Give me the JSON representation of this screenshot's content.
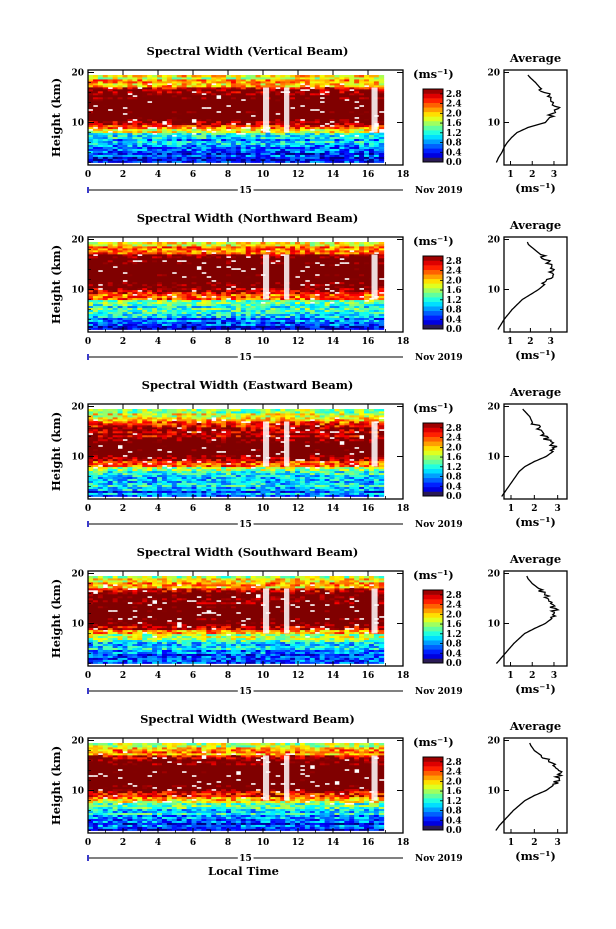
{
  "figure": {
    "x_unit_label": "(ms⁻¹)",
    "height_label": "Height (km)",
    "local_time_label": "Local Time",
    "date_day": "15",
    "date_month_year": "Nov 2019",
    "average_title": "Average"
  },
  "chart_data": [
    {
      "type": "heatmap",
      "title": "Spectral Width (Vertical Beam)",
      "xlabel": "",
      "ylabel": "Height (km)",
      "xlim": [
        0,
        18
      ],
      "xticks": [
        0,
        2,
        4,
        6,
        8,
        10,
        12,
        14,
        16,
        18
      ],
      "xtick_labels": [
        "0",
        "2",
        "4",
        "6",
        "8",
        "10",
        "12",
        "14",
        "16",
        "18"
      ],
      "ylim": [
        1.5,
        20.5
      ],
      "yticks": [
        10,
        20
      ],
      "data_x_range": [
        0,
        16.9
      ],
      "data_y_range": [
        2,
        19.5
      ],
      "colorbar": {
        "unit": "(ms⁻¹)",
        "range": [
          0.0,
          3.0
        ],
        "ticks": [
          0.0,
          0.4,
          0.8,
          1.2,
          1.6,
          2.0,
          2.4,
          2.8
        ]
      },
      "height_profile": [
        [
          2,
          0.35
        ],
        [
          3,
          0.45
        ],
        [
          4,
          0.6
        ],
        [
          5,
          0.7
        ],
        [
          6,
          0.85
        ],
        [
          7,
          1.05
        ],
        [
          8,
          1.3
        ],
        [
          9,
          1.8
        ],
        [
          10,
          2.6
        ],
        [
          11,
          2.8
        ],
        [
          12,
          3.0
        ],
        [
          13,
          3.1
        ],
        [
          14,
          2.9
        ],
        [
          15,
          2.8
        ],
        [
          16,
          2.6
        ],
        [
          17,
          2.35
        ],
        [
          18,
          2.15
        ],
        [
          19,
          1.9
        ],
        [
          19.5,
          1.8
        ]
      ]
    },
    {
      "type": "heatmap",
      "title": "Spectral Width (Northward Beam)",
      "xlabel": "",
      "ylabel": "Height (km)",
      "xlim": [
        0,
        18
      ],
      "xticks": [
        0,
        2,
        4,
        6,
        8,
        10,
        12,
        14,
        16,
        18
      ],
      "xtick_labels": [
        "0",
        "2",
        "4",
        "6",
        "8",
        "10",
        "12",
        "14",
        "16",
        "18"
      ],
      "ylim": [
        1.5,
        20.5
      ],
      "yticks": [
        10,
        20
      ],
      "data_x_range": [
        0,
        16.9
      ],
      "data_y_range": [
        2,
        19.5
      ],
      "colorbar": {
        "unit": "(ms⁻¹)",
        "range": [
          0.0,
          3.0
        ],
        "ticks": [
          0.0,
          0.4,
          0.8,
          1.2,
          1.6,
          2.0,
          2.4,
          2.8
        ]
      },
      "height_profile": [
        [
          2,
          0.4
        ],
        [
          3,
          0.55
        ],
        [
          4,
          0.7
        ],
        [
          5,
          0.9
        ],
        [
          6,
          1.1
        ],
        [
          7,
          1.35
        ],
        [
          8,
          1.6
        ],
        [
          9,
          2.0
        ],
        [
          10,
          2.4
        ],
        [
          11,
          2.7
        ],
        [
          12,
          2.9
        ],
        [
          13,
          3.0
        ],
        [
          14,
          3.1
        ],
        [
          15,
          3.0
        ],
        [
          16,
          2.8
        ],
        [
          17,
          2.5
        ],
        [
          18,
          2.2
        ],
        [
          19,
          1.9
        ],
        [
          19.5,
          1.85
        ]
      ]
    },
    {
      "type": "heatmap",
      "title": "Spectral Width (Eastward Beam)",
      "xlabel": "",
      "ylabel": "Height (km)",
      "xlim": [
        0,
        18
      ],
      "xticks": [
        0,
        2,
        4,
        6,
        8,
        10,
        12,
        14,
        16,
        18
      ],
      "xtick_labels": [
        "0",
        "2",
        "4",
        "6",
        "8",
        "10",
        "12",
        "14",
        "16",
        "18"
      ],
      "ylim": [
        1.5,
        20.5
      ],
      "yticks": [
        10,
        20
      ],
      "data_x_range": [
        0,
        16.9
      ],
      "data_y_range": [
        2,
        19.5
      ],
      "colorbar": {
        "unit": "(ms⁻¹)",
        "range": [
          0.0,
          3.0
        ],
        "ticks": [
          0.0,
          0.4,
          0.8,
          1.2,
          1.6,
          2.0,
          2.4,
          2.8
        ]
      },
      "height_profile": [
        [
          2,
          0.6
        ],
        [
          3,
          0.75
        ],
        [
          4,
          0.9
        ],
        [
          5,
          1.05
        ],
        [
          6,
          1.2
        ],
        [
          7,
          1.35
        ],
        [
          8,
          1.6
        ],
        [
          9,
          2.0
        ],
        [
          10,
          2.5
        ],
        [
          11,
          2.8
        ],
        [
          12,
          2.9
        ],
        [
          13,
          2.6
        ],
        [
          14,
          2.5
        ],
        [
          15,
          2.3
        ],
        [
          16,
          2.1
        ],
        [
          17,
          1.9
        ],
        [
          18,
          1.8
        ],
        [
          19,
          1.6
        ],
        [
          19.5,
          1.5
        ]
      ]
    },
    {
      "type": "heatmap",
      "title": "Spectral Width (Southward Beam)",
      "xlabel": "",
      "ylabel": "Height (km)",
      "xlim": [
        0,
        18
      ],
      "xticks": [
        0,
        2,
        4,
        6,
        8,
        10,
        12,
        14,
        16,
        18
      ],
      "xtick_labels": [
        "0",
        "2",
        "4",
        "6",
        "8",
        "10",
        "12",
        "14",
        "16",
        "18"
      ],
      "ylim": [
        1.5,
        20.5
      ],
      "yticks": [
        10,
        20
      ],
      "data_x_range": [
        0,
        16.9
      ],
      "data_y_range": [
        2,
        19.5
      ],
      "colorbar": {
        "unit": "(ms⁻¹)",
        "range": [
          0.0,
          3.0
        ],
        "ticks": [
          0.0,
          0.4,
          0.8,
          1.2,
          1.6,
          2.0,
          2.4,
          2.8
        ]
      },
      "height_profile": [
        [
          2,
          0.35
        ],
        [
          3,
          0.55
        ],
        [
          4,
          0.75
        ],
        [
          5,
          0.95
        ],
        [
          6,
          1.15
        ],
        [
          7,
          1.4
        ],
        [
          8,
          1.65
        ],
        [
          9,
          2.1
        ],
        [
          10,
          2.6
        ],
        [
          11,
          2.9
        ],
        [
          12,
          3.1
        ],
        [
          13,
          3.0
        ],
        [
          14,
          2.8
        ],
        [
          15,
          2.7
        ],
        [
          16,
          2.5
        ],
        [
          17,
          2.3
        ],
        [
          18,
          2.0
        ],
        [
          19,
          1.8
        ],
        [
          19.5,
          1.75
        ]
      ]
    },
    {
      "type": "heatmap",
      "title": "Spectral Width (Westward Beam)",
      "xlabel": "Local Time",
      "ylabel": "Height (km)",
      "xlim": [
        0,
        18
      ],
      "xticks": [
        0,
        2,
        4,
        6,
        8,
        10,
        12,
        14,
        16,
        18
      ],
      "xtick_labels": [
        "0",
        "2",
        "4",
        "6",
        "8",
        "10",
        "12",
        "14",
        "16",
        "18"
      ],
      "ylim": [
        1.5,
        20.5
      ],
      "yticks": [
        10,
        20
      ],
      "data_x_range": [
        0,
        16.9
      ],
      "data_y_range": [
        2,
        19.5
      ],
      "colorbar": {
        "unit": "(ms⁻¹)",
        "range": [
          0.0,
          3.0
        ],
        "ticks": [
          0.0,
          0.4,
          0.8,
          1.2,
          1.6,
          2.0,
          2.4,
          2.8
        ]
      },
      "height_profile": [
        [
          2,
          0.35
        ],
        [
          3,
          0.5
        ],
        [
          4,
          0.7
        ],
        [
          5,
          0.9
        ],
        [
          6,
          1.1
        ],
        [
          7,
          1.35
        ],
        [
          8,
          1.6
        ],
        [
          9,
          2.0
        ],
        [
          10,
          2.5
        ],
        [
          11,
          2.8
        ],
        [
          12,
          3.0
        ],
        [
          13,
          3.1
        ],
        [
          14,
          3.0
        ],
        [
          15,
          2.8
        ],
        [
          16,
          2.6
        ],
        [
          17,
          2.3
        ],
        [
          18,
          2.0
        ],
        [
          19,
          1.85
        ],
        [
          19.5,
          1.8
        ]
      ]
    }
  ],
  "average_profiles": [
    {
      "title": "Average",
      "xlabel": "(ms⁻¹)",
      "xlim": [
        0.7,
        3.6
      ],
      "xticks": [
        1,
        2,
        3
      ],
      "ylim": [
        1.5,
        20.5
      ],
      "yticks": [
        10,
        20
      ]
    },
    {
      "title": "Average",
      "xlabel": "(ms⁻¹)",
      "xlim": [
        0.7,
        3.8
      ],
      "xticks": [
        1,
        2,
        3
      ],
      "ylim": [
        1.5,
        20.5
      ],
      "yticks": [
        10,
        20
      ]
    },
    {
      "title": "Average",
      "xlabel": "(ms⁻¹)",
      "xlim": [
        0.7,
        3.4
      ],
      "xticks": [
        1,
        2,
        3
      ],
      "ylim": [
        1.5,
        20.5
      ],
      "yticks": [
        10,
        20
      ]
    },
    {
      "title": "Average",
      "xlabel": "(ms⁻¹)",
      "xlim": [
        0.7,
        3.6
      ],
      "xticks": [
        1,
        2,
        3
      ],
      "ylim": [
        1.5,
        20.5
      ],
      "yticks": [
        10,
        20
      ]
    },
    {
      "title": "Average",
      "xlabel": "(ms⁻¹)",
      "xlim": [
        0.7,
        3.4
      ],
      "xticks": [
        1,
        2,
        3
      ],
      "ylim": [
        1.5,
        20.5
      ],
      "yticks": [
        10,
        20
      ]
    }
  ]
}
